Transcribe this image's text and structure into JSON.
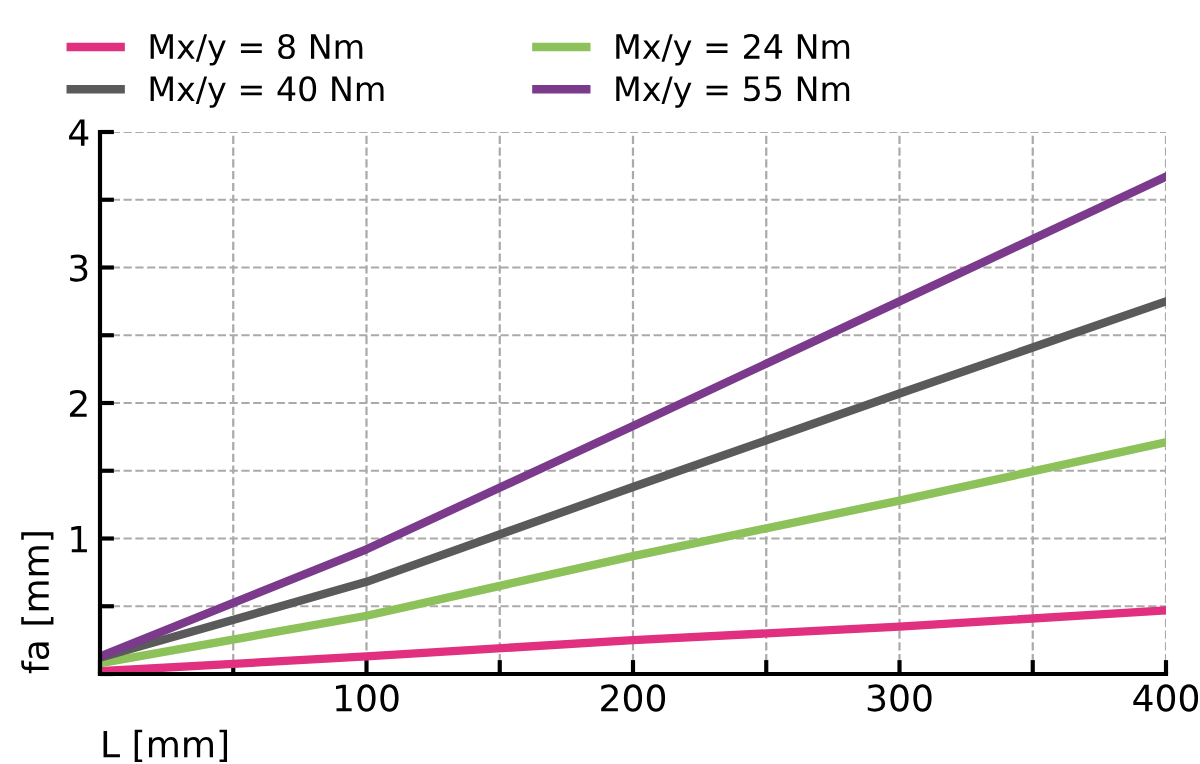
{
  "chart_data": {
    "type": "line",
    "xlabel": "L [mm]",
    "ylabel": "fa [mm]",
    "x": [
      0,
      100,
      200,
      300,
      400
    ],
    "series": [
      {
        "name": "Mx/y = 8 Nm",
        "color": "#e0307f",
        "values": [
          0.02,
          0.13,
          0.25,
          0.35,
          0.47
        ]
      },
      {
        "name": "Mx/y = 24 Nm",
        "color": "#8dc25a",
        "values": [
          0.08,
          0.43,
          0.87,
          1.28,
          1.71
        ]
      },
      {
        "name": "Mx/y = 40 Nm",
        "color": "#5a5a5a",
        "values": [
          0.12,
          0.68,
          1.38,
          2.07,
          2.75
        ]
      },
      {
        "name": "Mx/y = 55 Nm",
        "color": "#7b3a8c",
        "values": [
          0.13,
          0.92,
          1.83,
          2.75,
          3.67
        ]
      }
    ],
    "xlim": [
      0,
      400
    ],
    "ylim": [
      0,
      4
    ],
    "xticks": [
      {
        "value": 0,
        "label": null
      },
      {
        "value": 50,
        "label": null
      },
      100,
      {
        "value": 150,
        "label": null
      },
      200,
      {
        "value": 250,
        "label": null
      },
      300,
      {
        "value": 350,
        "label": null
      },
      400
    ],
    "yticks": [
      {
        "value": 0,
        "label": null
      },
      {
        "value": 0.5,
        "label": null
      },
      1,
      {
        "value": 1.5,
        "label": null
      },
      2,
      {
        "value": 2.5,
        "label": null
      },
      3,
      {
        "value": 3.5,
        "label": null
      },
      4
    ],
    "grid": true,
    "legend": "top",
    "marker": "none",
    "line_style": "solid"
  }
}
